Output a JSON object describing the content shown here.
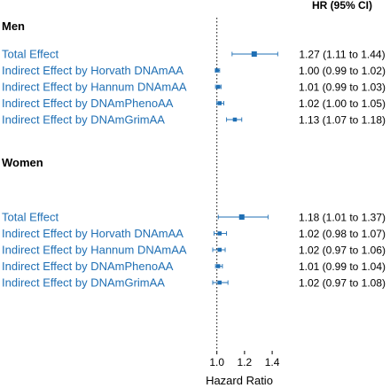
{
  "chart_data": {
    "type": "forest",
    "header": "HR (95% CI)",
    "xlabel": "Hazard Ratio",
    "reference_line": 1.0,
    "xlim": [
      0.97,
      1.47
    ],
    "xticks": [
      1.0,
      1.2,
      1.4
    ],
    "xtick_labels": [
      "1.0",
      "1.2",
      "1.4"
    ],
    "marker_color": "#1f6fb4",
    "groups": [
      {
        "name": "Men",
        "rows": [
          {
            "label": "Total Effect",
            "hr": 1.27,
            "lo": 1.11,
            "hi": 1.44,
            "text": "1.27 (1.11 to 1.44)"
          },
          {
            "label": "Indirect Effect by Horvath DNAmAA",
            "hr": 1.0,
            "lo": 0.99,
            "hi": 1.02,
            "text": "1.00 (0.99 to 1.02)"
          },
          {
            "label": "Indirect Effect by Hannum DNAmAA",
            "hr": 1.01,
            "lo": 0.99,
            "hi": 1.03,
            "text": "1.01 (0.99 to 1.03)"
          },
          {
            "label": "Indirect Effect by DNAmPhenoAA",
            "hr": 1.02,
            "lo": 1.0,
            "hi": 1.05,
            "text": "1.02 (1.00 to 1.05)"
          },
          {
            "label": "Indirect Effect by DNAmGrimAA",
            "hr": 1.13,
            "lo": 1.07,
            "hi": 1.18,
            "text": "1.13 (1.07 to 1.18)"
          }
        ]
      },
      {
        "name": "Women",
        "rows": [
          {
            "label": "Total Effect",
            "hr": 1.18,
            "lo": 1.01,
            "hi": 1.37,
            "text": "1.18 (1.01 to 1.37)"
          },
          {
            "label": "Indirect Effect by Horvath DNAmAA",
            "hr": 1.02,
            "lo": 0.98,
            "hi": 1.07,
            "text": "1.02 (0.98 to 1.07)"
          },
          {
            "label": "Indirect Effect by Hannum DNAmAA",
            "hr": 1.02,
            "lo": 0.97,
            "hi": 1.06,
            "text": "1.02 (0.97 to 1.06)"
          },
          {
            "label": "Indirect Effect by DNAmPhenoAA",
            "hr": 1.01,
            "lo": 0.99,
            "hi": 1.04,
            "text": "1.01 (0.99 to 1.04)"
          },
          {
            "label": "Indirect Effect by DNAmGrimAA",
            "hr": 1.02,
            "lo": 0.97,
            "hi": 1.08,
            "text": "1.02 (0.97 to 1.08)"
          }
        ]
      }
    ]
  }
}
